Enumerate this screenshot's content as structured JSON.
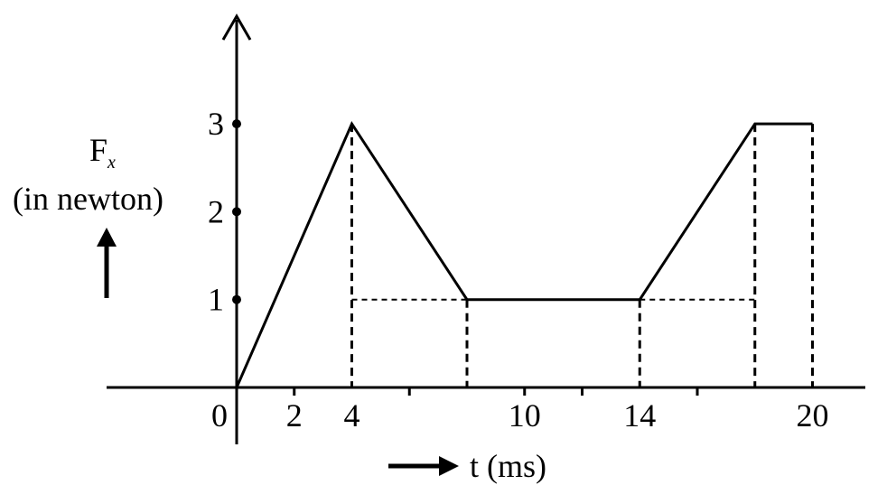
{
  "chart_data": {
    "type": "line",
    "x": [
      0,
      4,
      8,
      14,
      18,
      18,
      20
    ],
    "y": [
      0,
      3,
      1,
      1,
      3,
      3,
      3
    ],
    "xlim": [
      0,
      20
    ],
    "ylim": [
      0,
      3
    ],
    "origin_label": "0",
    "x_tick_labels": [
      {
        "value": 2,
        "label": "2"
      },
      {
        "value": 4,
        "label": "4"
      },
      {
        "value": 10,
        "label": "10"
      },
      {
        "value": 14,
        "label": "14"
      },
      {
        "value": 20,
        "label": "20"
      }
    ],
    "x_minor_ticks": [
      2,
      6,
      10,
      12,
      16
    ],
    "y_ticks": [
      {
        "value": 1,
        "label": "1"
      },
      {
        "value": 2,
        "label": "2"
      },
      {
        "value": 3,
        "label": "3"
      }
    ],
    "ylabel": {
      "symbol": "F",
      "subscript": "x",
      "unit": "(in newton)"
    },
    "xlabel": "t (ms)",
    "dashed_verticals": [
      4,
      8,
      14,
      18,
      20
    ],
    "dashed_horizontals": [
      {
        "y": 1,
        "from": 4,
        "to": 8
      },
      {
        "y": 1,
        "from": 14,
        "to": 18
      }
    ],
    "color": "#000000"
  }
}
